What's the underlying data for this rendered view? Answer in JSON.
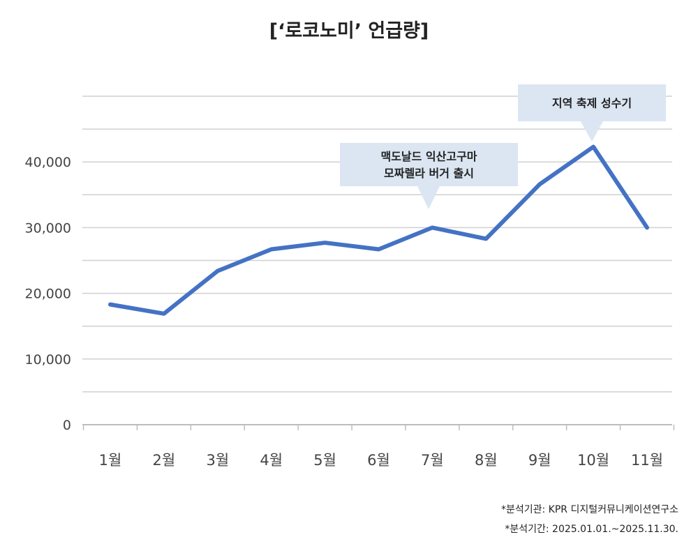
{
  "title": "[‘로코노미’ 언급량]",
  "chart_data": {
    "type": "line",
    "categories": [
      "1월",
      "2월",
      "3월",
      "4월",
      "5월",
      "6월",
      "7월",
      "8월",
      "9월",
      "10월",
      "11월"
    ],
    "series": [
      {
        "values": [
          18300,
          16900,
          23400,
          26700,
          27700,
          26700,
          30000,
          28300,
          36600,
          42300,
          30000
        ]
      }
    ],
    "ylim": [
      0,
      50000
    ],
    "yticks": [
      0,
      10000,
      20000,
      30000,
      40000
    ],
    "ytick_labels": [
      "0",
      "10,000",
      "20,000",
      "30,000",
      "40,000"
    ],
    "grid": true,
    "line_color": "#4472c4",
    "annotations": [
      {
        "index": 6,
        "lines": [
          "맥도날드 익산고구마",
          "모짜렐라 버거 출시"
        ]
      },
      {
        "index": 9,
        "lines": [
          "지역 축제 성수기"
        ]
      }
    ]
  },
  "source": {
    "line1": "*분석기관: KPR 디지털커뮤니케이션연구소",
    "line2": "*분석기간: 2025.01.01.~2025.11.30."
  }
}
